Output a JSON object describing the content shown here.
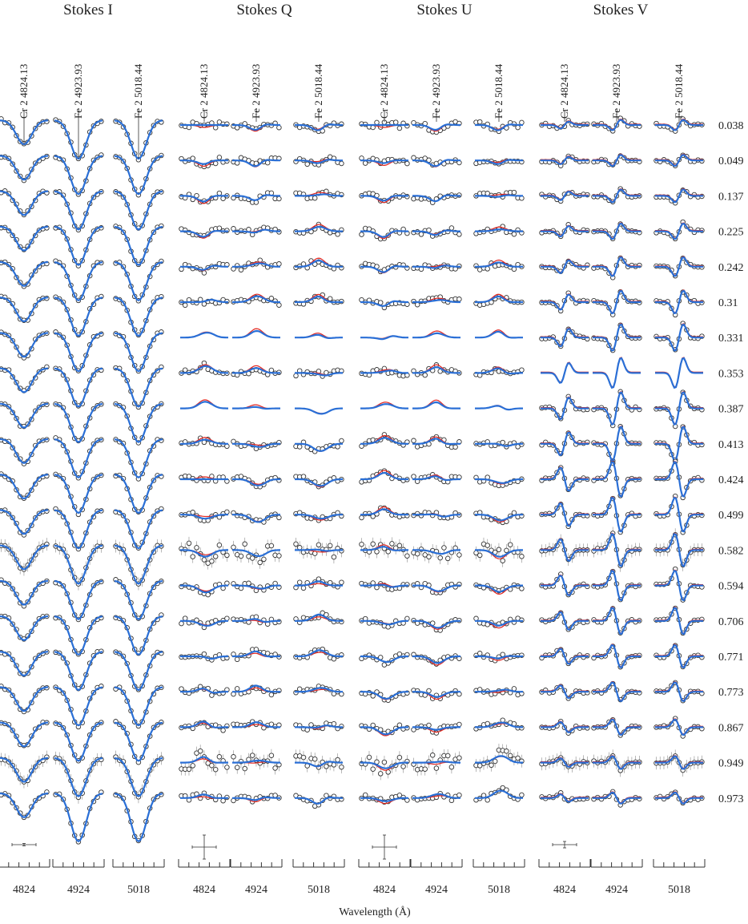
{
  "titles": [
    "Stokes I",
    "Stokes Q",
    "Stokes U",
    "Stokes V"
  ],
  "line_labels": [
    "Cr 2 4824.13",
    "Fe 2 4923.93",
    "Fe 2 5018.44"
  ],
  "phases": [
    0.038,
    0.049,
    0.137,
    0.225,
    0.242,
    0.31,
    0.331,
    0.353,
    0.387,
    0.413,
    0.424,
    0.499,
    0.582,
    0.594,
    0.706,
    0.771,
    0.773,
    0.867,
    0.949,
    0.973
  ],
  "x_tick_labels": [
    4824,
    4924,
    5018
  ],
  "x_axis_label": "Wavelength (Å)"
}
